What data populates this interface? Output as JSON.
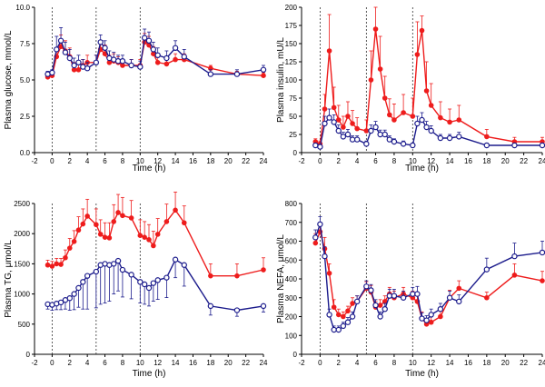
{
  "chart_data": [
    {
      "id": "glucose",
      "type": "line",
      "xlabel": "Time (h)",
      "ylabel": "Plasma glucose, mmol/L",
      "xlim": [
        -2,
        24
      ],
      "ylim": [
        0,
        10
      ],
      "xticks": [
        -2,
        0,
        2,
        4,
        6,
        8,
        10,
        12,
        14,
        16,
        18,
        20,
        22,
        24
      ],
      "yticks": [
        0.0,
        2.5,
        5.0,
        7.5,
        10.0
      ],
      "ytick_labels": [
        "0.0",
        "2.5",
        "5.0",
        "7.5",
        "10.0"
      ],
      "meal_times": [
        0,
        5,
        10
      ],
      "series": [
        {
          "color": "#ee1c1c",
          "marker": "filled",
          "x": [
            -0.5,
            0,
            0.5,
            1,
            1.5,
            2,
            2.5,
            3,
            3.5,
            4,
            5,
            5.5,
            6,
            6.5,
            7,
            7.5,
            8,
            9,
            10,
            10.5,
            11,
            11.5,
            12,
            13,
            14,
            15,
            18,
            21,
            24
          ],
          "y": [
            5.2,
            5.3,
            6.6,
            7.3,
            7.0,
            6.6,
            5.7,
            5.7,
            6.0,
            6.2,
            6.2,
            7.1,
            6.8,
            6.2,
            6.3,
            6.2,
            6.0,
            6.0,
            6.0,
            7.6,
            7.4,
            6.8,
            6.2,
            6.1,
            6.4,
            6.4,
            5.8,
            5.4,
            5.3
          ],
          "err": [
            0.2,
            0.2,
            0.6,
            0.8,
            0.7,
            0.6,
            0.5,
            0.4,
            0.4,
            0.5,
            0.5,
            0.6,
            0.6,
            0.5,
            0.5,
            0.4,
            0.4,
            0.4,
            0.4,
            0.6,
            0.6,
            0.5,
            0.4,
            0.4,
            0.4,
            0.4,
            0.2,
            0.2,
            0.2
          ]
        },
        {
          "color": "#1c1c8c",
          "marker": "open",
          "x": [
            -0.5,
            0,
            0.5,
            1,
            1.5,
            2,
            2.5,
            3,
            3.5,
            4,
            5,
            5.5,
            6,
            6.5,
            7,
            7.5,
            8,
            9,
            10,
            10.5,
            11,
            11.5,
            12,
            13,
            14,
            15,
            18,
            21,
            24
          ],
          "y": [
            5.4,
            5.5,
            7.1,
            7.7,
            6.9,
            6.5,
            6.0,
            6.2,
            5.9,
            5.8,
            6.2,
            7.6,
            7.2,
            6.5,
            6.4,
            6.3,
            6.3,
            6.0,
            5.9,
            7.9,
            7.7,
            7.1,
            6.7,
            6.5,
            7.2,
            6.6,
            5.4,
            5.4,
            5.7
          ],
          "err": [
            0.2,
            0.2,
            0.9,
            0.9,
            0.7,
            0.6,
            0.5,
            0.5,
            0.5,
            0.4,
            0.5,
            0.5,
            0.5,
            0.5,
            0.5,
            0.4,
            0.4,
            0.4,
            0.4,
            0.6,
            0.6,
            0.5,
            0.5,
            0.5,
            0.5,
            0.5,
            0.3,
            0.3,
            0.3
          ]
        }
      ]
    },
    {
      "id": "insulin",
      "type": "line",
      "xlabel": "Time (h)",
      "ylabel": "Plasma insulin, mU/L",
      "xlim": [
        -2,
        24
      ],
      "ylim": [
        0,
        200
      ],
      "xticks": [
        -2,
        0,
        2,
        4,
        6,
        8,
        10,
        12,
        14,
        16,
        18,
        20,
        22,
        24
      ],
      "yticks": [
        0,
        25,
        50,
        75,
        100,
        125,
        150,
        175,
        200
      ],
      "ytick_labels": [
        "0",
        "25",
        "50",
        "75",
        "100",
        "125",
        "150",
        "175",
        "200"
      ],
      "meal_times": [
        0,
        5,
        10
      ],
      "series": [
        {
          "color": "#ee1c1c",
          "marker": "filled",
          "x": [
            -0.5,
            0,
            0.5,
            1,
            1.5,
            2,
            2.5,
            3,
            3.5,
            4,
            5,
            5.5,
            6,
            6.5,
            7,
            7.5,
            8,
            9,
            10,
            10.5,
            11,
            11.5,
            12,
            13,
            14,
            15,
            18,
            21,
            24
          ],
          "y": [
            15,
            12,
            60,
            140,
            62,
            45,
            35,
            50,
            40,
            33,
            30,
            100,
            170,
            115,
            75,
            52,
            45,
            55,
            50,
            135,
            168,
            85,
            65,
            48,
            42,
            45,
            22,
            15,
            15
          ],
          "err": [
            4,
            4,
            20,
            50,
            28,
            20,
            15,
            20,
            18,
            15,
            15,
            40,
            30,
            45,
            30,
            22,
            22,
            25,
            25,
            45,
            20,
            40,
            30,
            22,
            18,
            20,
            10,
            6,
            6
          ]
        },
        {
          "color": "#1c1c8c",
          "marker": "open",
          "x": [
            -0.5,
            0,
            0.5,
            1,
            1.5,
            2,
            2.5,
            3,
            3.5,
            4,
            5,
            5.5,
            6,
            6.5,
            7,
            7.5,
            8,
            9,
            10,
            10.5,
            11,
            11.5,
            12,
            13,
            14,
            15,
            18,
            21,
            24
          ],
          "y": [
            10,
            8,
            40,
            48,
            42,
            30,
            22,
            25,
            18,
            18,
            12,
            30,
            35,
            25,
            25,
            18,
            15,
            12,
            10,
            40,
            45,
            35,
            30,
            20,
            20,
            22,
            10,
            10,
            10
          ],
          "err": [
            3,
            3,
            10,
            12,
            10,
            8,
            6,
            7,
            5,
            5,
            4,
            8,
            8,
            6,
            6,
            5,
            4,
            4,
            3,
            10,
            10,
            8,
            7,
            5,
            5,
            6,
            3,
            3,
            3
          ]
        }
      ]
    },
    {
      "id": "tg",
      "type": "line",
      "xlabel": "Time (h)",
      "ylabel": "Plasma TG, μmol/L",
      "xlim": [
        -2,
        24
      ],
      "ylim": [
        0,
        2500
      ],
      "xticks": [
        -2,
        0,
        2,
        4,
        6,
        8,
        10,
        12,
        14,
        16,
        18,
        20,
        22,
        24
      ],
      "yticks": [
        0,
        500,
        1000,
        1500,
        2000,
        2500
      ],
      "ytick_labels": [
        "0",
        "500",
        "1000",
        "1500",
        "2000",
        "2500"
      ],
      "meal_times": [
        0,
        5,
        10
      ],
      "series": [
        {
          "color": "#ee1c1c",
          "marker": "filled",
          "x": [
            -0.5,
            0,
            0.5,
            1,
            1.5,
            2,
            2.5,
            3,
            3.5,
            4,
            5,
            5.5,
            6,
            6.5,
            7,
            7.5,
            8,
            9,
            10,
            10.5,
            11,
            11.5,
            12,
            13,
            14,
            15,
            18,
            21,
            24
          ],
          "y": [
            1480,
            1460,
            1500,
            1490,
            1600,
            1760,
            1870,
            2060,
            2160,
            2290,
            2150,
            1990,
            1940,
            1930,
            2200,
            2350,
            2300,
            2260,
            1970,
            1940,
            1900,
            1800,
            1990,
            2200,
            2390,
            2180,
            1300,
            1300,
            1400
          ],
          "err": [
            80,
            80,
            90,
            100,
            130,
            160,
            180,
            220,
            250,
            280,
            260,
            240,
            240,
            250,
            280,
            300,
            300,
            290,
            260,
            260,
            250,
            240,
            260,
            290,
            300,
            280,
            200,
            200,
            200
          ]
        },
        {
          "color": "#1c1c8c",
          "marker": "open",
          "x": [
            -0.5,
            0,
            0.5,
            1,
            1.5,
            2,
            2.5,
            3,
            3.5,
            4,
            5,
            5.5,
            6,
            6.5,
            7,
            7.5,
            8,
            9,
            10,
            10.5,
            11,
            11.5,
            12,
            13,
            14,
            15,
            18,
            21,
            24
          ],
          "y": [
            830,
            820,
            840,
            860,
            900,
            930,
            1000,
            1100,
            1200,
            1300,
            1370,
            1480,
            1500,
            1480,
            1500,
            1550,
            1400,
            1320,
            1200,
            1160,
            1100,
            1180,
            1230,
            1270,
            1570,
            1480,
            800,
            730,
            800
          ],
          "err": [
            80,
            90,
            100,
            120,
            150,
            200,
            260,
            320,
            450,
            550,
            600,
            650,
            650,
            600,
            500,
            500,
            450,
            400,
            350,
            330,
            300,
            300,
            320,
            330,
            300,
            350,
            150,
            100,
            100
          ]
        }
      ]
    },
    {
      "id": "nefa",
      "type": "line",
      "xlabel": "Time (h)",
      "ylabel": "Plasma NEFA, μmol/L",
      "xlim": [
        -2,
        24
      ],
      "ylim": [
        0,
        800
      ],
      "xticks": [
        -2,
        0,
        2,
        4,
        6,
        8,
        10,
        12,
        14,
        16,
        18,
        20,
        22,
        24
      ],
      "yticks": [
        0,
        100,
        200,
        300,
        400,
        500,
        600,
        700,
        800
      ],
      "ytick_labels": [
        "0",
        "100",
        "200",
        "300",
        "400",
        "500",
        "600",
        "700",
        "800"
      ],
      "meal_times": [
        0,
        5,
        10
      ],
      "series": [
        {
          "color": "#ee1c1c",
          "marker": "filled",
          "x": [
            -0.5,
            0,
            0.5,
            1,
            1.5,
            2,
            2.5,
            3,
            3.5,
            4,
            5,
            5.5,
            6,
            6.5,
            7,
            7.5,
            8,
            9,
            10,
            10.5,
            11,
            11.5,
            12,
            13,
            14,
            15,
            18,
            21,
            24
          ],
          "y": [
            590,
            650,
            560,
            430,
            250,
            210,
            200,
            230,
            270,
            280,
            350,
            330,
            250,
            260,
            280,
            320,
            300,
            320,
            300,
            280,
            190,
            160,
            170,
            200,
            300,
            350,
            300,
            420,
            390
          ],
          "err": [
            50,
            40,
            60,
            50,
            40,
            30,
            25,
            25,
            30,
            30,
            35,
            35,
            30,
            30,
            30,
            35,
            35,
            35,
            35,
            40,
            35,
            30,
            30,
            30,
            40,
            40,
            30,
            60,
            50
          ]
        },
        {
          "color": "#1c1c8c",
          "marker": "open",
          "x": [
            -0.5,
            0,
            0.5,
            1,
            1.5,
            2,
            2.5,
            3,
            3.5,
            4,
            5,
            5.5,
            6,
            6.5,
            7,
            7.5,
            8,
            9,
            10,
            10.5,
            11,
            11.5,
            12,
            13,
            14,
            15,
            18,
            21,
            24
          ],
          "y": [
            620,
            690,
            520,
            210,
            130,
            130,
            150,
            170,
            200,
            280,
            360,
            340,
            260,
            200,
            240,
            310,
            310,
            300,
            320,
            320,
            190,
            180,
            210,
            240,
            300,
            280,
            450,
            520,
            540
          ],
          "err": [
            40,
            40,
            50,
            30,
            20,
            20,
            20,
            25,
            25,
            30,
            30,
            30,
            30,
            25,
            30,
            35,
            35,
            35,
            35,
            40,
            30,
            25,
            30,
            30,
            35,
            35,
            60,
            70,
            60
          ]
        }
      ]
    }
  ]
}
